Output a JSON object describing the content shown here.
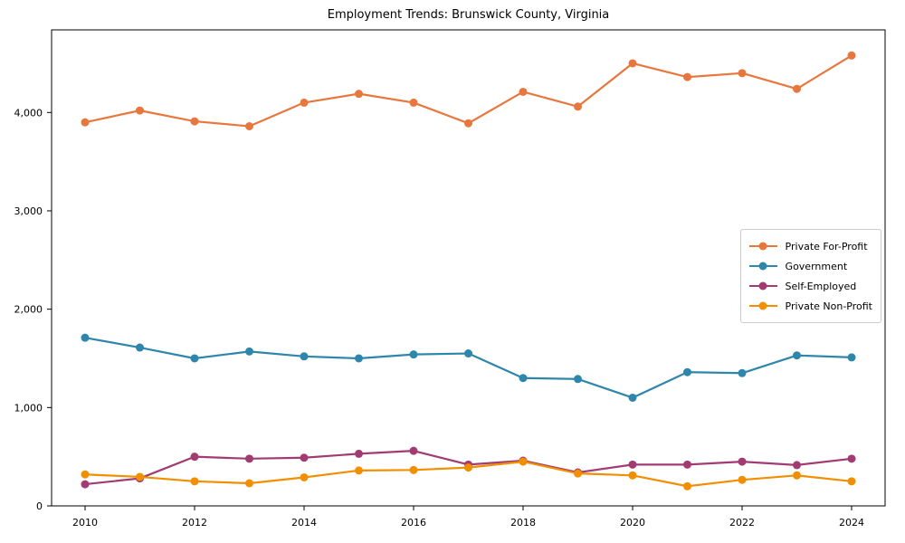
{
  "title": "Employment Trends: Brunswick County, Virginia",
  "chart_data": {
    "type": "line",
    "title": "Employment Trends: Brunswick County, Virginia",
    "x": [
      2010,
      2011,
      2012,
      2013,
      2014,
      2015,
      2016,
      2017,
      2018,
      2019,
      2020,
      2021,
      2022,
      2023,
      2024
    ],
    "series": [
      {
        "name": "Private For-Profit",
        "color": "#E8773D",
        "values": [
          3900,
          4020,
          3910,
          3860,
          4100,
          4190,
          4100,
          3890,
          4210,
          4060,
          4500,
          4360,
          4400,
          4240,
          4580
        ]
      },
      {
        "name": "Government",
        "color": "#2E86AB",
        "values": [
          1710,
          1610,
          1500,
          1570,
          1520,
          1500,
          1540,
          1550,
          1300,
          1290,
          1100,
          1360,
          1350,
          1530,
          1510
        ]
      },
      {
        "name": "Self-Employed",
        "color": "#A23B72",
        "values": [
          220,
          280,
          500,
          480,
          490,
          530,
          560,
          420,
          460,
          340,
          420,
          420,
          450,
          415,
          480
        ]
      },
      {
        "name": "Private Non-Profit",
        "color": "#F18F01",
        "values": [
          320,
          295,
          250,
          230,
          290,
          360,
          365,
          390,
          450,
          330,
          310,
          200,
          265,
          310,
          250
        ]
      }
    ],
    "xticks": [
      2010,
      2012,
      2014,
      2016,
      2018,
      2020,
      2022,
      2024
    ],
    "yticks": [
      0,
      1000,
      2000,
      3000,
      4000
    ],
    "ytick_labels": [
      "0",
      "1,000",
      "2,000",
      "3,000",
      "4,000"
    ],
    "xlabel": "",
    "ylabel": "",
    "ylim": [
      0,
      4840
    ],
    "grid": false,
    "legend_position": "center-right",
    "axis_color": "#000000"
  }
}
